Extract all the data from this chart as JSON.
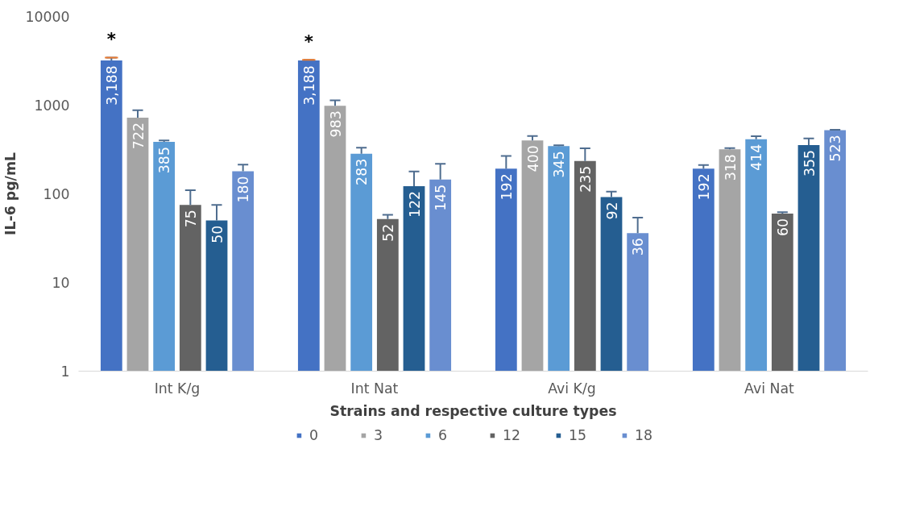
{
  "chart_data": {
    "type": "bar",
    "xlabel": "Strains and respective culture types",
    "ylabel": "IL-6 pg/mL",
    "categories": [
      "Int K/g",
      "Int Nat",
      "Avi K/g",
      "Avi Nat"
    ],
    "log": "y",
    "ylim": [
      1,
      10000
    ],
    "yticks": [
      1,
      10,
      100,
      1000,
      10000
    ],
    "grid": false,
    "legend": "bottom",
    "legend_title": null,
    "series": [
      {
        "name": "0",
        "color": "#4472c4",
        "values": [
          3188,
          3188,
          192,
          192
        ],
        "value_labels": [
          "3,188",
          "3,188",
          "192",
          "192"
        ],
        "errors": [
          [
            3188,
            3440
          ],
          [
            3188,
            3250
          ],
          [
            192,
            267
          ],
          [
            192,
            211
          ]
        ]
      },
      {
        "name": "3",
        "color": "#a5a5a5",
        "values": [
          722,
          983,
          400,
          318
        ],
        "value_labels": [
          "722",
          "983",
          "400",
          "318"
        ],
        "errors": [
          [
            722,
            877
          ],
          [
            983,
            1133
          ],
          [
            400,
            448
          ],
          [
            318,
            328
          ]
        ]
      },
      {
        "name": "6",
        "color": "#5b9bd5",
        "values": [
          385,
          283,
          345,
          414
        ],
        "value_labels": [
          "385",
          "283",
          "345",
          "414"
        ],
        "errors": [
          [
            385,
            400
          ],
          [
            283,
            331
          ],
          [
            345,
            353
          ],
          [
            414,
            447
          ]
        ]
      },
      {
        "name": "12",
        "color": "#636363",
        "values": [
          75,
          52,
          235,
          60
        ],
        "value_labels": [
          "75",
          "52",
          "235",
          "60"
        ],
        "errors": [
          [
            75,
            110
          ],
          [
            52,
            58
          ],
          [
            235,
            327
          ],
          [
            60,
            62
          ]
        ]
      },
      {
        "name": "15",
        "color": "#255e91",
        "values": [
          50,
          122,
          92,
          355
        ],
        "value_labels": [
          "50",
          "122",
          "92",
          "355"
        ],
        "errors": [
          [
            50,
            75
          ],
          [
            122,
            179
          ],
          [
            92,
            106
          ],
          [
            355,
            422
          ]
        ]
      },
      {
        "name": "18",
        "color": "#698ed0",
        "values": [
          180,
          145,
          36,
          523
        ],
        "value_labels": [
          "180",
          "145",
          "36",
          "523"
        ],
        "errors": [
          [
            180,
            214
          ],
          [
            145,
            218
          ],
          [
            36,
            54
          ],
          [
            523,
            528
          ]
        ]
      }
    ],
    "annotations": [
      "*",
      "*"
    ]
  }
}
